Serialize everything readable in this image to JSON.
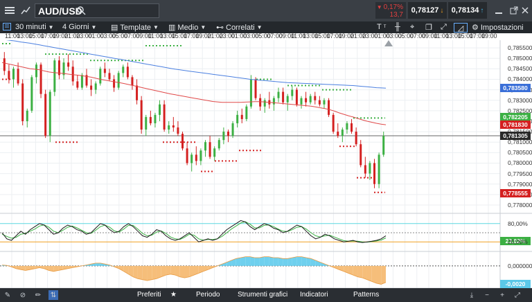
{
  "header": {
    "symbol": "AUD/USD",
    "change_pct": "0,17%",
    "change_pts": "13,7",
    "bid": "0,78127",
    "ask": "0,78134"
  },
  "toolbar": {
    "interval": "30 minuti",
    "range": "4 Giorni",
    "template": "Template",
    "average": "Medio",
    "related": "Correlati",
    "settings": "Impostazioni"
  },
  "time_labels": [
    "11:00",
    "13:00",
    "15:00",
    "17:00",
    "19:00",
    "21:00",
    "23:00",
    "01:00",
    "03:00",
    "05:00",
    "07:00",
    "09:00",
    "11:00",
    "13:00",
    "15:00",
    "17:00",
    "19:00",
    "21:00",
    "23:00",
    "01:00",
    "03:00",
    "05:00",
    "07:00",
    "09:00",
    "11:00",
    "13:00",
    "15:00",
    "17:00",
    "19:00",
    "21:00",
    "23:00",
    "01:00",
    "03:00",
    "05:00",
    "07:00",
    "09:00",
    "11:00",
    "13:00",
    "15:00",
    "17:00",
    "19:00",
    "21:00"
  ],
  "price_axis": [
    "0,785500",
    "0,785000",
    "0,784500",
    "0,784000",
    "0,783500",
    "0,783000",
    "0,782500",
    "0,782000",
    "0,781500",
    "0,781000",
    "0,780500",
    "0,780000",
    "0,779500",
    "0,779000",
    "0,778500",
    "0,778000"
  ],
  "price_tags": [
    {
      "value": "0,783580",
      "color": "#3a6fd8"
    },
    {
      "value": "0,782205",
      "color": "#3cb043"
    },
    {
      "value": "0,781830",
      "color": "#d42020"
    },
    {
      "value": "0,781305",
      "color": "#2a2a2a"
    },
    {
      "value": "0,778555",
      "color": "#d42020"
    }
  ],
  "osc_axis": [
    "80,00%",
    "20,00%"
  ],
  "osc_tags": [
    {
      "value": "23,02%",
      "color": "#3cb043"
    }
  ],
  "macd_axis": [
    "0,000000"
  ],
  "macd_tags": [
    {
      "value": "-0,0020",
      "color": "#5bc8e8"
    }
  ],
  "chart_data": {
    "type": "candlestick",
    "candles": [
      [
        0.785,
        0.7853,
        0.7842,
        0.7844
      ],
      [
        0.7844,
        0.7847,
        0.7838,
        0.784
      ],
      [
        0.784,
        0.7846,
        0.7836,
        0.7845
      ],
      [
        0.7845,
        0.7848,
        0.7837,
        0.7838
      ],
      [
        0.7838,
        0.784,
        0.7818,
        0.782
      ],
      [
        0.782,
        0.7826,
        0.7817,
        0.7825
      ],
      [
        0.7825,
        0.7842,
        0.7824,
        0.7841
      ],
      [
        0.7841,
        0.7848,
        0.7838,
        0.7847
      ],
      [
        0.7847,
        0.7848,
        0.7831,
        0.7833
      ],
      [
        0.7833,
        0.7835,
        0.7812,
        0.7813
      ],
      [
        0.7813,
        0.7835,
        0.781,
        0.7834
      ],
      [
        0.7834,
        0.785,
        0.7832,
        0.7849
      ],
      [
        0.7849,
        0.7851,
        0.784,
        0.7842
      ],
      [
        0.7842,
        0.785,
        0.784,
        0.7848
      ],
      [
        0.7848,
        0.7852,
        0.7844,
        0.7846
      ],
      [
        0.7846,
        0.7849,
        0.7837,
        0.7839
      ],
      [
        0.7839,
        0.7842,
        0.7835,
        0.7836
      ],
      [
        0.7836,
        0.7843,
        0.7835,
        0.7842
      ],
      [
        0.7842,
        0.7845,
        0.7836,
        0.7837
      ],
      [
        0.7837,
        0.784,
        0.7832,
        0.7835
      ],
      [
        0.7835,
        0.7839,
        0.7833,
        0.7838
      ],
      [
        0.7838,
        0.7846,
        0.7837,
        0.7845
      ],
      [
        0.7845,
        0.7848,
        0.7841,
        0.7843
      ],
      [
        0.7843,
        0.7845,
        0.7839,
        0.784
      ],
      [
        0.784,
        0.7842,
        0.7834,
        0.7836
      ],
      [
        0.7836,
        0.7844,
        0.7835,
        0.7843
      ],
      [
        0.7843,
        0.7847,
        0.7841,
        0.7846
      ],
      [
        0.7846,
        0.7848,
        0.784,
        0.7841
      ],
      [
        0.7841,
        0.7842,
        0.7835,
        0.7837
      ],
      [
        0.7837,
        0.784,
        0.7828,
        0.783
      ],
      [
        0.783,
        0.7832,
        0.7814,
        0.7816
      ],
      [
        0.7816,
        0.7823,
        0.7813,
        0.7822
      ],
      [
        0.7822,
        0.7825,
        0.7818,
        0.7819
      ],
      [
        0.7819,
        0.7824,
        0.7817,
        0.7823
      ],
      [
        0.7823,
        0.783,
        0.782,
        0.7828
      ],
      [
        0.7828,
        0.783,
        0.7815,
        0.7816
      ],
      [
        0.7816,
        0.782,
        0.7814,
        0.7818
      ],
      [
        0.7818,
        0.7822,
        0.7815,
        0.7817
      ],
      [
        0.7817,
        0.782,
        0.7813,
        0.7814
      ],
      [
        0.7814,
        0.7815,
        0.7806,
        0.7807
      ],
      [
        0.7807,
        0.781,
        0.7799,
        0.78
      ],
      [
        0.78,
        0.7805,
        0.7796,
        0.7804
      ],
      [
        0.7804,
        0.7808,
        0.7799,
        0.7801
      ],
      [
        0.7801,
        0.7807,
        0.7799,
        0.7806
      ],
      [
        0.7806,
        0.7811,
        0.7803,
        0.781
      ],
      [
        0.781,
        0.7813,
        0.7802,
        0.7803
      ],
      [
        0.7803,
        0.7808,
        0.7801,
        0.7807
      ],
      [
        0.7807,
        0.7812,
        0.7806,
        0.7811
      ],
      [
        0.7811,
        0.7817,
        0.7809,
        0.7815
      ],
      [
        0.7815,
        0.7816,
        0.781,
        0.7813
      ],
      [
        0.7813,
        0.782,
        0.7812,
        0.7819
      ],
      [
        0.7819,
        0.7825,
        0.7817,
        0.7823
      ],
      [
        0.7823,
        0.7826,
        0.7819,
        0.7821
      ],
      [
        0.7821,
        0.7828,
        0.782,
        0.7827
      ],
      [
        0.7827,
        0.7842,
        0.7826,
        0.784
      ],
      [
        0.784,
        0.7841,
        0.783,
        0.7831
      ],
      [
        0.7831,
        0.7833,
        0.7825,
        0.7827
      ],
      [
        0.7827,
        0.7831,
        0.7824,
        0.783
      ],
      [
        0.783,
        0.7834,
        0.7826,
        0.7828
      ],
      [
        0.7828,
        0.7832,
        0.7825,
        0.7831
      ],
      [
        0.7831,
        0.7836,
        0.7829,
        0.7834
      ],
      [
        0.7834,
        0.7836,
        0.7828,
        0.7829
      ],
      [
        0.7829,
        0.7833,
        0.7825,
        0.7832
      ],
      [
        0.7832,
        0.7837,
        0.783,
        0.7835
      ],
      [
        0.7835,
        0.7836,
        0.7827,
        0.7828
      ],
      [
        0.7828,
        0.7832,
        0.7826,
        0.7831
      ],
      [
        0.7831,
        0.7834,
        0.7827,
        0.7829
      ],
      [
        0.7829,
        0.7833,
        0.7828,
        0.7832
      ],
      [
        0.7832,
        0.7834,
        0.7828,
        0.783
      ],
      [
        0.783,
        0.7832,
        0.7827,
        0.7828
      ],
      [
        0.7828,
        0.7831,
        0.7826,
        0.783
      ],
      [
        0.783,
        0.7831,
        0.7822,
        0.7823
      ],
      [
        0.7823,
        0.7824,
        0.7814,
        0.7815
      ],
      [
        0.7815,
        0.7819,
        0.7812,
        0.7813
      ],
      [
        0.7813,
        0.7817,
        0.781,
        0.7816
      ],
      [
        0.7816,
        0.782,
        0.7814,
        0.7819
      ],
      [
        0.7819,
        0.7821,
        0.7814,
        0.7815
      ],
      [
        0.7815,
        0.7817,
        0.7808,
        0.7809
      ],
      [
        0.7809,
        0.7811,
        0.7798,
        0.7799
      ],
      [
        0.7799,
        0.7803,
        0.7793,
        0.7795
      ],
      [
        0.7795,
        0.7801,
        0.7792,
        0.78
      ],
      [
        0.78,
        0.7802,
        0.7788,
        0.779
      ],
      [
        0.779,
        0.7805,
        0.7788,
        0.7804
      ],
      [
        0.7804,
        0.7815,
        0.7803,
        0.7813
      ]
    ],
    "sma_red": [
      0.7848,
      0.78475,
      0.7847,
      0.78465,
      0.7846,
      0.78455,
      0.7845,
      0.78448,
      0.78445,
      0.7844,
      0.78435,
      0.78432,
      0.7843,
      0.78428,
      0.78425,
      0.78422,
      0.7842,
      0.78417,
      0.78414,
      0.7841,
      0.78405,
      0.784,
      0.78396,
      0.78392,
      0.78388,
      0.78384,
      0.7838,
      0.78375,
      0.7837,
      0.78365,
      0.7836,
      0.78355,
      0.7835,
      0.78345,
      0.7834,
      0.78335,
      0.7833,
      0.78326,
      0.78322,
      0.78318,
      0.78314,
      0.7831,
      0.78306,
      0.78302,
      0.78298,
      0.78294,
      0.78292,
      0.7829,
      0.7829,
      0.7829,
      0.7829,
      0.7829,
      0.78291,
      0.78292,
      0.78293,
      0.78293,
      0.78292,
      0.7829,
      0.78288,
      0.78286,
      0.78284,
      0.78282,
      0.7828,
      0.78278,
      0.78276,
      0.78274,
      0.78272,
      0.78268,
      0.78264,
      0.7826,
      0.78255,
      0.78248,
      0.7824,
      0.78233,
      0.78226,
      0.7822,
      0.78213,
      0.78206,
      0.782,
      0.78195,
      0.7819,
      0.78186,
      0.78183
    ],
    "sma_blue": [
      0.7859,
      0.78588,
      0.78585,
      0.78582,
      0.78578,
      0.78575,
      0.78572,
      0.78568,
      0.78564,
      0.7856,
      0.78556,
      0.78552,
      0.78548,
      0.78544,
      0.7854,
      0.78536,
      0.78532,
      0.78528,
      0.78524,
      0.7852,
      0.78516,
      0.78512,
      0.78508,
      0.78504,
      0.785,
      0.78496,
      0.78492,
      0.78488,
      0.78484,
      0.7848,
      0.78476,
      0.78472,
      0.78468,
      0.78464,
      0.7846,
      0.78456,
      0.78452,
      0.78448,
      0.78445,
      0.78442,
      0.78439,
      0.78436,
      0.78433,
      0.7843,
      0.78427,
      0.78424,
      0.78421,
      0.78418,
      0.78415,
      0.78412,
      0.78409,
      0.78406,
      0.78403,
      0.784,
      0.78398,
      0.78396,
      0.78394,
      0.78392,
      0.7839,
      0.78388,
      0.78386,
      0.78384,
      0.78383,
      0.78382,
      0.78381,
      0.7838,
      0.78379,
      0.78378,
      0.78377,
      0.78376,
      0.78375,
      0.78374,
      0.78373,
      0.78372,
      0.78371,
      0.7837,
      0.78368,
      0.78366,
      0.78364,
      0.78362,
      0.7836,
      0.78359,
      0.78358
    ],
    "ylim": [
      0.7778,
      0.7858
    ],
    "osc_black": [
      50,
      30,
      25,
      40,
      55,
      45,
      60,
      70,
      80,
      75,
      60,
      45,
      50,
      65,
      75,
      70,
      60,
      55,
      45,
      50,
      65,
      80,
      75,
      60,
      50,
      55,
      70,
      80,
      70,
      55,
      40,
      35,
      45,
      60,
      55,
      40,
      30,
      25,
      30,
      40,
      50,
      35,
      20,
      25,
      30,
      25,
      30,
      45,
      60,
      70,
      80,
      90,
      85,
      70,
      60,
      70,
      80,
      75,
      65,
      60,
      50,
      55,
      65,
      75,
      70,
      55,
      40,
      30,
      35,
      45,
      40,
      30,
      25,
      20,
      22,
      25,
      20,
      18,
      20,
      22,
      25,
      30,
      40
    ],
    "osc_green": [
      45,
      38,
      32,
      35,
      45,
      48,
      55,
      62,
      72,
      76,
      68,
      55,
      50,
      58,
      68,
      72,
      66,
      58,
      50,
      48,
      58,
      70,
      75,
      68,
      56,
      52,
      62,
      74,
      74,
      62,
      48,
      40,
      42,
      52,
      56,
      48,
      36,
      30,
      28,
      35,
      45,
      42,
      30,
      26,
      28,
      28,
      30,
      38,
      50,
      62,
      72,
      82,
      86,
      78,
      66,
      66,
      74,
      76,
      70,
      62,
      55,
      54,
      60,
      68,
      70,
      62,
      50,
      40,
      36,
      40,
      42,
      36,
      30,
      24,
      22,
      23,
      22,
      20,
      19,
      21,
      23,
      26,
      33
    ],
    "macd": [
      0.0001,
      5e-05,
      -0.0001,
      -0.0003,
      -0.0004,
      -0.0005,
      -0.0004,
      -0.0003,
      -0.0002,
      -0.0003,
      -0.0005,
      -0.0006,
      -0.0005,
      -0.0004,
      -0.0003,
      -0.0002,
      -0.0001,
      0.0,
      0.0001,
      0.0002,
      0.0003,
      0.0003,
      0.0002,
      0.0001,
      -0.0001,
      -0.0003,
      -0.0006,
      -0.0009,
      -0.0012,
      -0.0014,
      -0.0015,
      -0.0016,
      -0.0015,
      -0.0014,
      -0.0012,
      -0.001,
      -0.0009,
      -0.001,
      -0.0012,
      -0.0013,
      -0.0012,
      -0.001,
      -0.0008,
      -0.0006,
      -0.0004,
      -0.0002,
      0.0,
      0.0002,
      0.0004,
      0.0006,
      0.0008,
      0.0009,
      0.001,
      0.001,
      0.0009,
      0.0009,
      0.001,
      0.001,
      0.0009,
      0.0009,
      0.0008,
      0.0008,
      0.0009,
      0.001,
      0.001,
      0.0009,
      0.0008,
      0.0006,
      0.0004,
      0.0002,
      0.0,
      -0.0002,
      -0.0004,
      -0.0006,
      -0.0008,
      -0.001,
      -0.0012,
      -0.0013,
      -0.0015,
      -0.0017,
      -0.0019,
      -0.002,
      -0.0018
    ],
    "macd_ylim": [
      -0.0022,
      0.0012
    ]
  },
  "bottom": {
    "favorites": "Preferiti",
    "period": "Periodo",
    "tools": "Strumenti grafici",
    "indicators": "Indicatori",
    "patterns": "Patterns"
  }
}
